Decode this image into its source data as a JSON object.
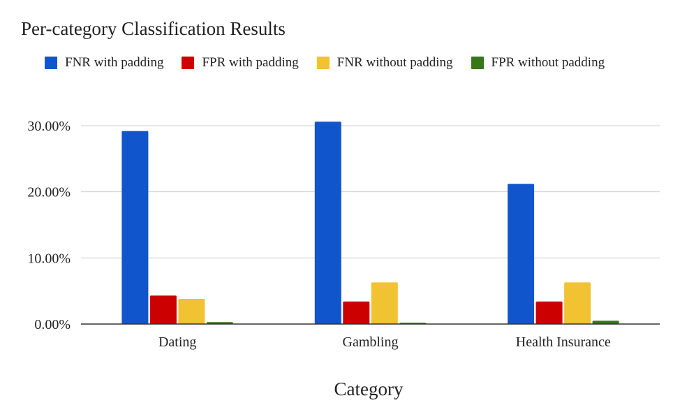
{
  "chart_data": {
    "type": "bar",
    "title": "Per-category Classification Results",
    "xlabel": "Category",
    "ylabel": "",
    "categories": [
      "Dating",
      "Gambling",
      "Health Insurance"
    ],
    "series": [
      {
        "name": "FNR with padding",
        "color": "#1155cc",
        "values": [
          29.2,
          30.6,
          21.2
        ]
      },
      {
        "name": "FPR with padding",
        "color": "#cc0000",
        "values": [
          4.3,
          3.4,
          3.4
        ]
      },
      {
        "name": "FNR without padding",
        "color": "#f1c232",
        "values": [
          3.8,
          6.3,
          6.3
        ]
      },
      {
        "name": "FPR without padding",
        "color": "#38761d",
        "values": [
          0.3,
          0.2,
          0.5
        ]
      }
    ],
    "y_ticks": [
      "0.00%",
      "10.00%",
      "20.00%",
      "30.00%"
    ],
    "y_tick_values": [
      0,
      10,
      20,
      30
    ],
    "ylim": [
      0,
      30
    ],
    "grid": true,
    "legend_position": "top-left"
  }
}
